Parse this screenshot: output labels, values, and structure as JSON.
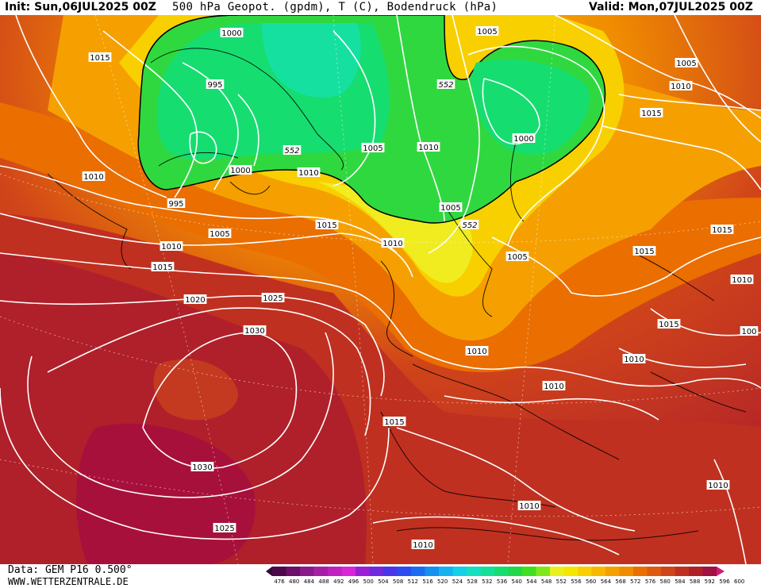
{
  "header": {
    "init": "Init: Sun,06JUL2025 00Z",
    "title": "500 hPa Geopot. (gpdm), T (C), Bodendruck (hPa)",
    "valid": "Valid: Mon,07JUL2025 00Z"
  },
  "footer": {
    "data_source": "Data: GEM P16 0.500°",
    "website": "WWW.WETTERZENTRALE.DE"
  },
  "colorbar": {
    "labels": [
      "476",
      "480",
      "484",
      "488",
      "492",
      "496",
      "500",
      "504",
      "508",
      "512",
      "516",
      "520",
      "524",
      "528",
      "532",
      "536",
      "540",
      "544",
      "548",
      "552",
      "556",
      "560",
      "564",
      "568",
      "572",
      "576",
      "580",
      "584",
      "588",
      "592",
      "596",
      "600"
    ],
    "colors": [
      "#4a0a4a",
      "#6b0f6b",
      "#8a1a8a",
      "#a51fa5",
      "#c020c0",
      "#d825d8",
      "#9b1fd6",
      "#6f2ae0",
      "#4a36ea",
      "#2b4cf0",
      "#1a6cf2",
      "#1590f0",
      "#15b2f0",
      "#15d0e8",
      "#15e0c0",
      "#15e09a",
      "#16dd70",
      "#20d84a",
      "#40e020",
      "#80e81a",
      "#e8f020",
      "#f5e600",
      "#f8d000",
      "#f8b800",
      "#f5a000",
      "#f08c00",
      "#ea6e00",
      "#de5a10",
      "#d0441a",
      "#c03020",
      "#b0202a",
      "#a01040"
    ]
  },
  "map_labels": {
    "isobars": [
      {
        "text": "1015",
        "id": "isobar-1015-nw"
      },
      {
        "text": "1000",
        "id": "isobar-1000-greenland"
      },
      {
        "text": "995",
        "id": "isobar-995-greenland"
      },
      {
        "text": "1005",
        "id": "isobar-1005-top"
      },
      {
        "text": "1005",
        "id": "isobar-1005-scand"
      },
      {
        "text": "1010",
        "id": "isobar-1010-ne"
      },
      {
        "text": "1015",
        "id": "isobar-1015-ne"
      },
      {
        "text": "1005",
        "id": "isobar-1005-iceland"
      },
      {
        "text": "1010",
        "id": "isobar-1010-iceland"
      },
      {
        "text": "1000",
        "id": "isobar-1000-nsea"
      },
      {
        "text": "1010",
        "id": "isobar-1010-west"
      },
      {
        "text": "1000",
        "id": "isobar-1000-denmark"
      },
      {
        "text": "1010",
        "id": "isobar-1010-denmark"
      },
      {
        "text": "995",
        "id": "isobar-995-labrador"
      },
      {
        "text": "1005",
        "id": "isobar-1005-atlantic"
      },
      {
        "text": "1015",
        "id": "isobar-1015-atlantic"
      },
      {
        "text": "1005",
        "id": "isobar-1005-baltic"
      },
      {
        "text": "1010",
        "id": "isobar-1010-atl2"
      },
      {
        "text": "1010",
        "id": "isobar-1010-nsea2"
      },
      {
        "text": "1015",
        "id": "isobar-1015-west"
      },
      {
        "text": "1005",
        "id": "isobar-1005-poland"
      },
      {
        "text": "1015",
        "id": "isobar-1015-russia"
      },
      {
        "text": "1015",
        "id": "isobar-1015-russia2"
      },
      {
        "text": "1010",
        "id": "isobar-1010-east"
      },
      {
        "text": "1020",
        "id": "isobar-1020-atlantic"
      },
      {
        "text": "1025",
        "id": "isobar-1025-atlantic"
      },
      {
        "text": "1015",
        "id": "isobar-1015-ukraine"
      },
      {
        "text": "100",
        "id": "isobar-100-edge"
      },
      {
        "text": "1030",
        "id": "isobar-1030-azores"
      },
      {
        "text": "1010",
        "id": "isobar-1010-france"
      },
      {
        "text": "1010",
        "id": "isobar-1010-balkans"
      },
      {
        "text": "1010",
        "id": "isobar-1010-alps"
      },
      {
        "text": "1015",
        "id": "isobar-1015-biscay"
      },
      {
        "text": "1030",
        "id": "isobar-1030-south"
      },
      {
        "text": "1010",
        "id": "isobar-1010-turkey"
      },
      {
        "text": "1010",
        "id": "isobar-1010-med"
      },
      {
        "text": "1025",
        "id": "isobar-1025-south"
      },
      {
        "text": "1010",
        "id": "isobar-1010-africa"
      }
    ],
    "geopotential": [
      {
        "text": "552",
        "id": "gph-552-north"
      },
      {
        "text": "552",
        "id": "gph-552-iceland"
      },
      {
        "text": "552",
        "id": "gph-552-skagerrak"
      }
    ]
  }
}
